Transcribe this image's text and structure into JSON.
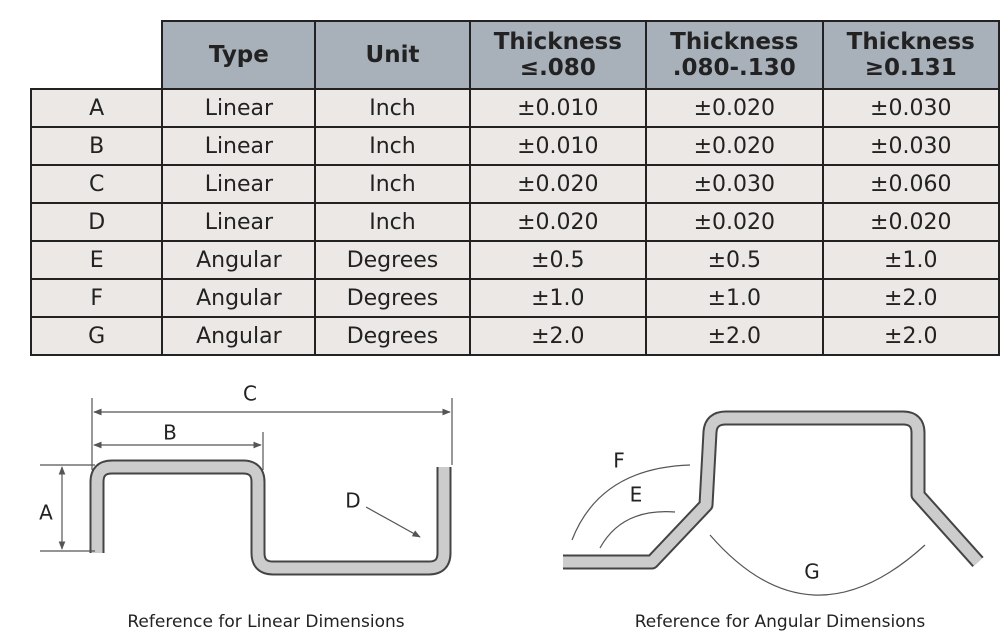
{
  "table": {
    "header": [
      "Type",
      "Unit",
      "Thickness ≤.080",
      "Thickness .080-.130",
      "Thickness ≥0.131"
    ],
    "rows": [
      [
        "A",
        "Linear",
        "Inch",
        "±0.010",
        "±0.020",
        "±0.030"
      ],
      [
        "B",
        "Linear",
        "Inch",
        "±0.010",
        "±0.020",
        "±0.030"
      ],
      [
        "C",
        "Linear",
        "Inch",
        "±0.020",
        "±0.030",
        "±0.060"
      ],
      [
        "D",
        "Linear",
        "Inch",
        "±0.020",
        "±0.020",
        "±0.020"
      ],
      [
        "E",
        "Angular",
        "Degrees",
        "±0.5",
        "±0.5",
        "±1.0"
      ],
      [
        "F",
        "Angular",
        "Degrees",
        "±1.0",
        "±1.0",
        "±2.0"
      ],
      [
        "G",
        "Angular",
        "Degrees",
        "±2.0",
        "±2.0",
        "±2.0"
      ]
    ]
  },
  "linear_diagram": {
    "labels": [
      "A",
      "B",
      "C",
      "D"
    ],
    "caption": "Reference for Linear Dimensions"
  },
  "angular_diagram": {
    "labels": [
      "E",
      "F",
      "G"
    ],
    "caption": "Reference for Angular Dimensions"
  }
}
